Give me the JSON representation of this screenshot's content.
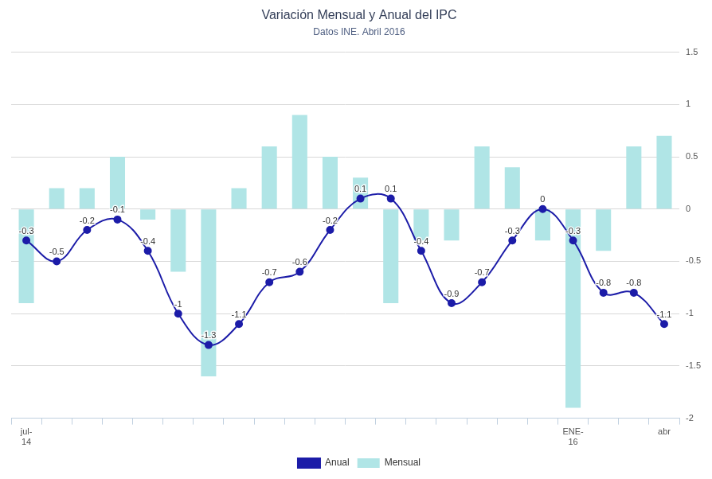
{
  "chart_data": {
    "type": "bar",
    "title": "Variación Mensual y Anual del IPC",
    "subtitle": "Datos INE. Abril 2016",
    "categories": [
      "jul-14",
      null,
      null,
      null,
      null,
      null,
      null,
      null,
      null,
      null,
      null,
      null,
      null,
      null,
      null,
      null,
      null,
      null,
      "ENE-16",
      null,
      null,
      "abr"
    ],
    "series": [
      {
        "name": "Mensual",
        "type": "bar",
        "color": "#b0e5e6",
        "values": [
          -0.9,
          0.2,
          0.2,
          0.5,
          -0.1,
          -0.6,
          -1.6,
          0.2,
          0.6,
          0.9,
          0.5,
          0.3,
          -0.9,
          -0.3,
          -0.3,
          0.6,
          0.4,
          -0.3,
          -1.9,
          -0.4,
          0.6,
          0.7
        ]
      },
      {
        "name": "Anual",
        "type": "line",
        "color": "#1c1ca8",
        "marker": "circle",
        "data_labels": true,
        "values": [
          -0.3,
          -0.5,
          -0.2,
          -0.1,
          -0.4,
          -1,
          -1.3,
          -1.1,
          -0.7,
          -0.6,
          -0.2,
          0.1,
          0.1,
          -0.4,
          -0.9,
          -0.7,
          -0.3,
          0,
          -0.3,
          -0.8,
          -0.8,
          -1.1
        ]
      }
    ],
    "ylim": [
      -2,
      1.5
    ],
    "yticks": [
      -2,
      -1.5,
      -1,
      -0.5,
      0,
      0.5,
      1,
      1.5
    ],
    "grid": true,
    "legend": "bottom"
  }
}
